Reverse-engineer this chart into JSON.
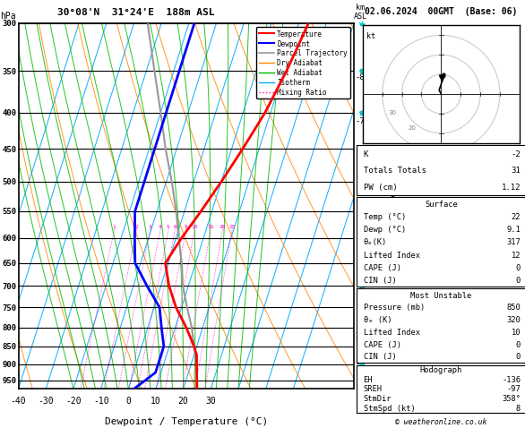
{
  "title_left": "30°08'N  31°24'E  188m ASL",
  "title_right": "02.06.2024  00GMT  (Base: 06)",
  "xlabel": "Dewpoint / Temperature (°C)",
  "pressure_levels": [
    300,
    350,
    400,
    450,
    500,
    550,
    600,
    650,
    700,
    750,
    800,
    850,
    900,
    950
  ],
  "temp_ticks": [
    -40,
    -30,
    -20,
    -10,
    0,
    10,
    20,
    30
  ],
  "mixing_ratio_lines": [
    1,
    2,
    3,
    4,
    5,
    6,
    8,
    10,
    15,
    20,
    25
  ],
  "P_min": 300,
  "P_max": 975,
  "T_min": -40,
  "T_max": 40,
  "skew": 42,
  "lcl_pressure": 820,
  "temp_profile_p": [
    300,
    320,
    350,
    400,
    450,
    500,
    550,
    600,
    650,
    700,
    750,
    800,
    850,
    875,
    900,
    925,
    950,
    975
  ],
  "temp_profile_t": [
    23.5,
    22.5,
    21,
    18,
    14,
    10,
    6,
    2,
    -1,
    3,
    8,
    14,
    19,
    21,
    22,
    23,
    24,
    25
  ],
  "dew_profile_p": [
    300,
    350,
    400,
    450,
    500,
    550,
    600,
    650,
    700,
    750,
    800,
    850,
    875,
    900,
    925,
    950,
    975
  ],
  "dew_profile_t": [
    -18,
    -18,
    -18,
    -18,
    -18,
    -18,
    -15,
    -12,
    -5,
    2,
    5,
    8,
    8,
    8,
    8,
    5,
    2
  ],
  "parcel_p": [
    975,
    950,
    900,
    850,
    800,
    750,
    700,
    650,
    600,
    550,
    500,
    450,
    400,
    350,
    300
  ],
  "parcel_t": [
    25,
    24,
    22,
    19,
    16,
    12,
    8,
    5,
    1,
    -3,
    -8,
    -14,
    -20,
    -27,
    -35
  ],
  "colors": {
    "temperature": "#ff0000",
    "dewpoint": "#0000ff",
    "parcel": "#999999",
    "dry_adiabat": "#ff8800",
    "wet_adiabat": "#00bb00",
    "isotherm": "#00aaff",
    "mixing_ratio": "#ff00cc",
    "grid": "#000000"
  },
  "hodo_u": [
    0,
    -1,
    0,
    1,
    2,
    1
  ],
  "hodo_v": [
    0,
    2,
    5,
    8,
    9,
    10
  ],
  "storm_u": 0.5,
  "storm_v": 8,
  "info": {
    "K": -2,
    "Totals_Totals": 31,
    "PW_cm": 1.12,
    "Surf_Temp": 22,
    "Surf_Dewp": 9.1,
    "Surf_ThetaE": 317,
    "Surf_LI": 12,
    "Surf_CAPE": 0,
    "Surf_CIN": 0,
    "MU_Pressure": 850,
    "MU_ThetaE": 320,
    "MU_LI": 10,
    "MU_CAPE": 0,
    "MU_CIN": 0,
    "EH": -136,
    "SREH": -97,
    "StmDir": "358°",
    "StmSpd": 8
  },
  "wind_p": [
    300,
    350,
    400,
    450,
    500,
    550,
    600,
    650,
    700,
    750,
    800,
    850,
    900,
    950
  ],
  "wind_u": [
    15,
    14,
    12,
    10,
    8,
    6,
    4,
    3,
    2,
    1,
    1,
    1,
    -1,
    -1
  ],
  "wind_v": [
    -10,
    -9,
    -8,
    -7,
    -6,
    -5,
    -4,
    -3,
    -3,
    -2,
    -2,
    -1,
    -1,
    -1
  ]
}
